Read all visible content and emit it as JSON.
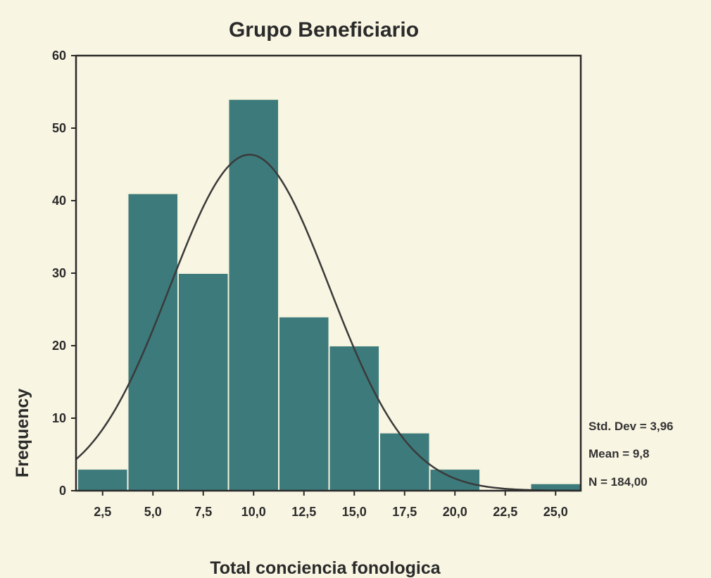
{
  "colors": {
    "background": "#f8f5e2",
    "bar_fill": "#3d7a7c",
    "bar_stroke": "#f5f3dc",
    "axis": "#2a2a2a",
    "curve": "#3a3a3a"
  },
  "chart_data": {
    "type": "bar",
    "title": "Grupo Beneficiario",
    "xlabel": "Total conciencia fonologica",
    "ylabel": "Frequency",
    "categories": [
      "2,5",
      "5,0",
      "7,5",
      "10,0",
      "12,5",
      "15,0",
      "17,5",
      "20,0",
      "22,5",
      "25,0"
    ],
    "values": [
      3,
      41,
      30,
      54,
      24,
      20,
      8,
      3,
      0,
      1
    ],
    "bin_width": 2.5,
    "ylim": [
      0,
      60
    ],
    "yticks": [
      "0",
      "10",
      "20",
      "30",
      "40",
      "50",
      "60"
    ],
    "normal_curve": {
      "mean": 9.8,
      "std": 3.96,
      "n": 184
    },
    "stats": {
      "std_dev": "Std. Dev = 3,96",
      "mean": "Mean = 9,8",
      "n": "N = 184,00"
    },
    "grid": false
  }
}
